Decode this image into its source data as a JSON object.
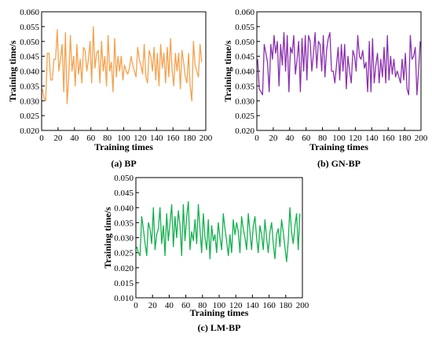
{
  "chart_data": [
    {
      "type": "line",
      "caption": "(a) BP",
      "xlabel": "Training times",
      "ylabel": "Training time/s",
      "xlim": [
        0,
        200
      ],
      "ylim": [
        0.02,
        0.06
      ],
      "xticks": [
        "0",
        "20",
        "40",
        "60",
        "80",
        "100",
        "120",
        "140",
        "160",
        "180",
        "200"
      ],
      "yticks": [
        "0.020",
        "0.025",
        "0.030",
        "0.035",
        "0.040",
        "0.045",
        "0.050",
        "0.055",
        "0.060"
      ],
      "color": "#F6A04D",
      "grid": false,
      "series": [
        {
          "x": [
            1,
            3,
            5,
            7,
            9,
            11,
            13,
            15,
            17,
            19,
            21,
            23,
            25,
            27,
            29,
            31,
            33,
            35,
            37,
            39,
            41,
            43,
            45,
            47,
            49,
            51,
            53,
            55,
            57,
            59,
            61,
            63,
            65,
            67,
            69,
            71,
            73,
            75,
            77,
            79,
            81,
            83,
            85,
            87,
            89,
            91,
            93,
            95,
            97,
            99,
            101,
            103,
            105,
            107,
            109,
            111,
            113,
            115,
            117,
            119,
            121,
            123,
            125,
            127,
            129,
            131,
            133,
            135,
            137,
            139,
            141,
            143,
            145,
            147,
            149,
            151,
            153,
            155,
            157,
            159,
            161,
            163,
            165,
            167,
            169,
            171,
            173,
            175,
            177,
            179,
            181,
            183,
            185,
            187,
            189,
            191,
            193,
            195
          ],
          "y": [
            0.034,
            0.031,
            0.03,
            0.046,
            0.046,
            0.037,
            0.037,
            0.044,
            0.044,
            0.054,
            0.04,
            0.044,
            0.049,
            0.033,
            0.053,
            0.029,
            0.038,
            0.052,
            0.04,
            0.045,
            0.035,
            0.049,
            0.039,
            0.044,
            0.036,
            0.048,
            0.047,
            0.04,
            0.044,
            0.05,
            0.036,
            0.055,
            0.041,
            0.046,
            0.047,
            0.036,
            0.05,
            0.04,
            0.045,
            0.035,
            0.052,
            0.04,
            0.043,
            0.033,
            0.051,
            0.038,
            0.045,
            0.04,
            0.045,
            0.037,
            0.042,
            0.04,
            0.039,
            0.041,
            0.045,
            0.042,
            0.04,
            0.038,
            0.048,
            0.044,
            0.042,
            0.039,
            0.049,
            0.038,
            0.036,
            0.047,
            0.045,
            0.04,
            0.048,
            0.037,
            0.046,
            0.035,
            0.049,
            0.041,
            0.046,
            0.036,
            0.048,
            0.038,
            0.051,
            0.04,
            0.035,
            0.046,
            0.04,
            0.046,
            0.034,
            0.047,
            0.043,
            0.038,
            0.036,
            0.046,
            0.035,
            0.03,
            0.05,
            0.042,
            0.04,
            0.038,
            0.049,
            0.043
          ]
        }
      ]
    },
    {
      "type": "line",
      "caption": "(b) GN-BP",
      "xlabel": "Training times",
      "ylabel": "Training time/s",
      "xlim": [
        0,
        200
      ],
      "ylim": [
        0.02,
        0.06
      ],
      "xticks": [
        "0",
        "20",
        "40",
        "60",
        "80",
        "100",
        "120",
        "140",
        "160",
        "180",
        "200"
      ],
      "yticks": [
        "0.020",
        "0.025",
        "0.030",
        "0.035",
        "0.040",
        "0.045",
        "0.050",
        "0.055",
        "0.060"
      ],
      "color": "#8B2FB0",
      "grid": false,
      "series": [
        {
          "x": [
            1,
            3,
            5,
            7,
            9,
            11,
            13,
            15,
            17,
            19,
            21,
            23,
            25,
            27,
            29,
            31,
            33,
            35,
            37,
            39,
            41,
            43,
            45,
            47,
            49,
            51,
            53,
            55,
            57,
            59,
            61,
            63,
            65,
            67,
            69,
            71,
            73,
            75,
            77,
            79,
            81,
            83,
            85,
            87,
            89,
            91,
            93,
            95,
            97,
            99,
            101,
            103,
            105,
            107,
            109,
            111,
            113,
            115,
            117,
            119,
            121,
            123,
            125,
            127,
            129,
            131,
            133,
            135,
            137,
            139,
            141,
            143,
            145,
            147,
            149,
            151,
            153,
            155,
            157,
            159,
            161,
            163,
            165,
            167,
            169,
            171,
            173,
            175,
            177,
            179,
            181,
            183,
            185,
            187,
            189,
            191,
            193,
            195,
            197,
            199
          ],
          "y": [
            0.044,
            0.034,
            0.033,
            0.032,
            0.049,
            0.046,
            0.043,
            0.033,
            0.049,
            0.044,
            0.052,
            0.046,
            0.05,
            0.035,
            0.049,
            0.042,
            0.053,
            0.04,
            0.052,
            0.033,
            0.048,
            0.046,
            0.052,
            0.039,
            0.044,
            0.05,
            0.033,
            0.051,
            0.04,
            0.052,
            0.037,
            0.052,
            0.05,
            0.04,
            0.046,
            0.053,
            0.041,
            0.05,
            0.049,
            0.04,
            0.052,
            0.038,
            0.047,
            0.051,
            0.053,
            0.04,
            0.04,
            0.036,
            0.042,
            0.048,
            0.037,
            0.049,
            0.04,
            0.049,
            0.034,
            0.045,
            0.04,
            0.036,
            0.047,
            0.045,
            0.04,
            0.052,
            0.045,
            0.044,
            0.047,
            0.041,
            0.043,
            0.033,
            0.05,
            0.033,
            0.051,
            0.036,
            0.042,
            0.046,
            0.036,
            0.044,
            0.038,
            0.048,
            0.036,
            0.052,
            0.037,
            0.045,
            0.039,
            0.044,
            0.038,
            0.04,
            0.038,
            0.036,
            0.044,
            0.037,
            0.046,
            0.034,
            0.032,
            0.052,
            0.044,
            0.045,
            0.048,
            0.032,
            0.04,
            0.05
          ]
        }
      ]
    },
    {
      "type": "line",
      "caption": "(c) LM-BP",
      "xlabel": "Training times",
      "ylabel": "Training time/s",
      "xlim": [
        0,
        200
      ],
      "ylim": [
        0.01,
        0.05
      ],
      "xticks": [
        "0",
        "20",
        "40",
        "60",
        "80",
        "100",
        "120",
        "140",
        "160",
        "180",
        "200"
      ],
      "yticks": [
        "0.010",
        "0.015",
        "0.020",
        "0.025",
        "0.030",
        "0.035",
        "0.040",
        "0.045",
        "0.050"
      ],
      "color": "#13B04E",
      "grid": false,
      "series": [
        {
          "x": [
            1,
            3,
            5,
            7,
            9,
            11,
            13,
            15,
            17,
            19,
            21,
            23,
            25,
            27,
            29,
            31,
            33,
            35,
            37,
            39,
            41,
            43,
            45,
            47,
            49,
            51,
            53,
            55,
            57,
            59,
            61,
            63,
            65,
            67,
            69,
            71,
            73,
            75,
            77,
            79,
            81,
            83,
            85,
            87,
            89,
            91,
            93,
            95,
            97,
            99,
            101,
            103,
            105,
            107,
            109,
            111,
            113,
            115,
            117,
            119,
            121,
            123,
            125,
            127,
            129,
            131,
            133,
            135,
            137,
            139,
            141,
            143,
            145,
            147,
            149,
            151,
            153,
            155,
            157,
            159,
            161,
            163,
            165,
            167,
            169,
            171,
            173,
            175,
            177,
            179,
            181,
            183,
            185,
            187,
            189,
            191,
            193,
            195,
            197
          ],
          "y": [
            0.027,
            0.025,
            0.024,
            0.037,
            0.033,
            0.028,
            0.024,
            0.035,
            0.033,
            0.028,
            0.04,
            0.026,
            0.031,
            0.033,
            0.04,
            0.028,
            0.034,
            0.024,
            0.038,
            0.029,
            0.035,
            0.041,
            0.027,
            0.037,
            0.03,
            0.039,
            0.034,
            0.024,
            0.041,
            0.029,
            0.037,
            0.042,
            0.026,
            0.032,
            0.029,
            0.036,
            0.028,
            0.041,
            0.033,
            0.025,
            0.038,
            0.03,
            0.026,
            0.036,
            0.023,
            0.034,
            0.029,
            0.031,
            0.025,
            0.035,
            0.03,
            0.026,
            0.038,
            0.033,
            0.029,
            0.024,
            0.031,
            0.025,
            0.036,
            0.031,
            0.035,
            0.032,
            0.025,
            0.037,
            0.033,
            0.03,
            0.026,
            0.038,
            0.032,
            0.026,
            0.034,
            0.037,
            0.03,
            0.025,
            0.034,
            0.031,
            0.026,
            0.036,
            0.03,
            0.025,
            0.032,
            0.035,
            0.028,
            0.023,
            0.031,
            0.033,
            0.027,
            0.036,
            0.032,
            0.027,
            0.022,
            0.029,
            0.04,
            0.032,
            0.028,
            0.034,
            0.038,
            0.026,
            0.038
          ]
        }
      ]
    }
  ]
}
